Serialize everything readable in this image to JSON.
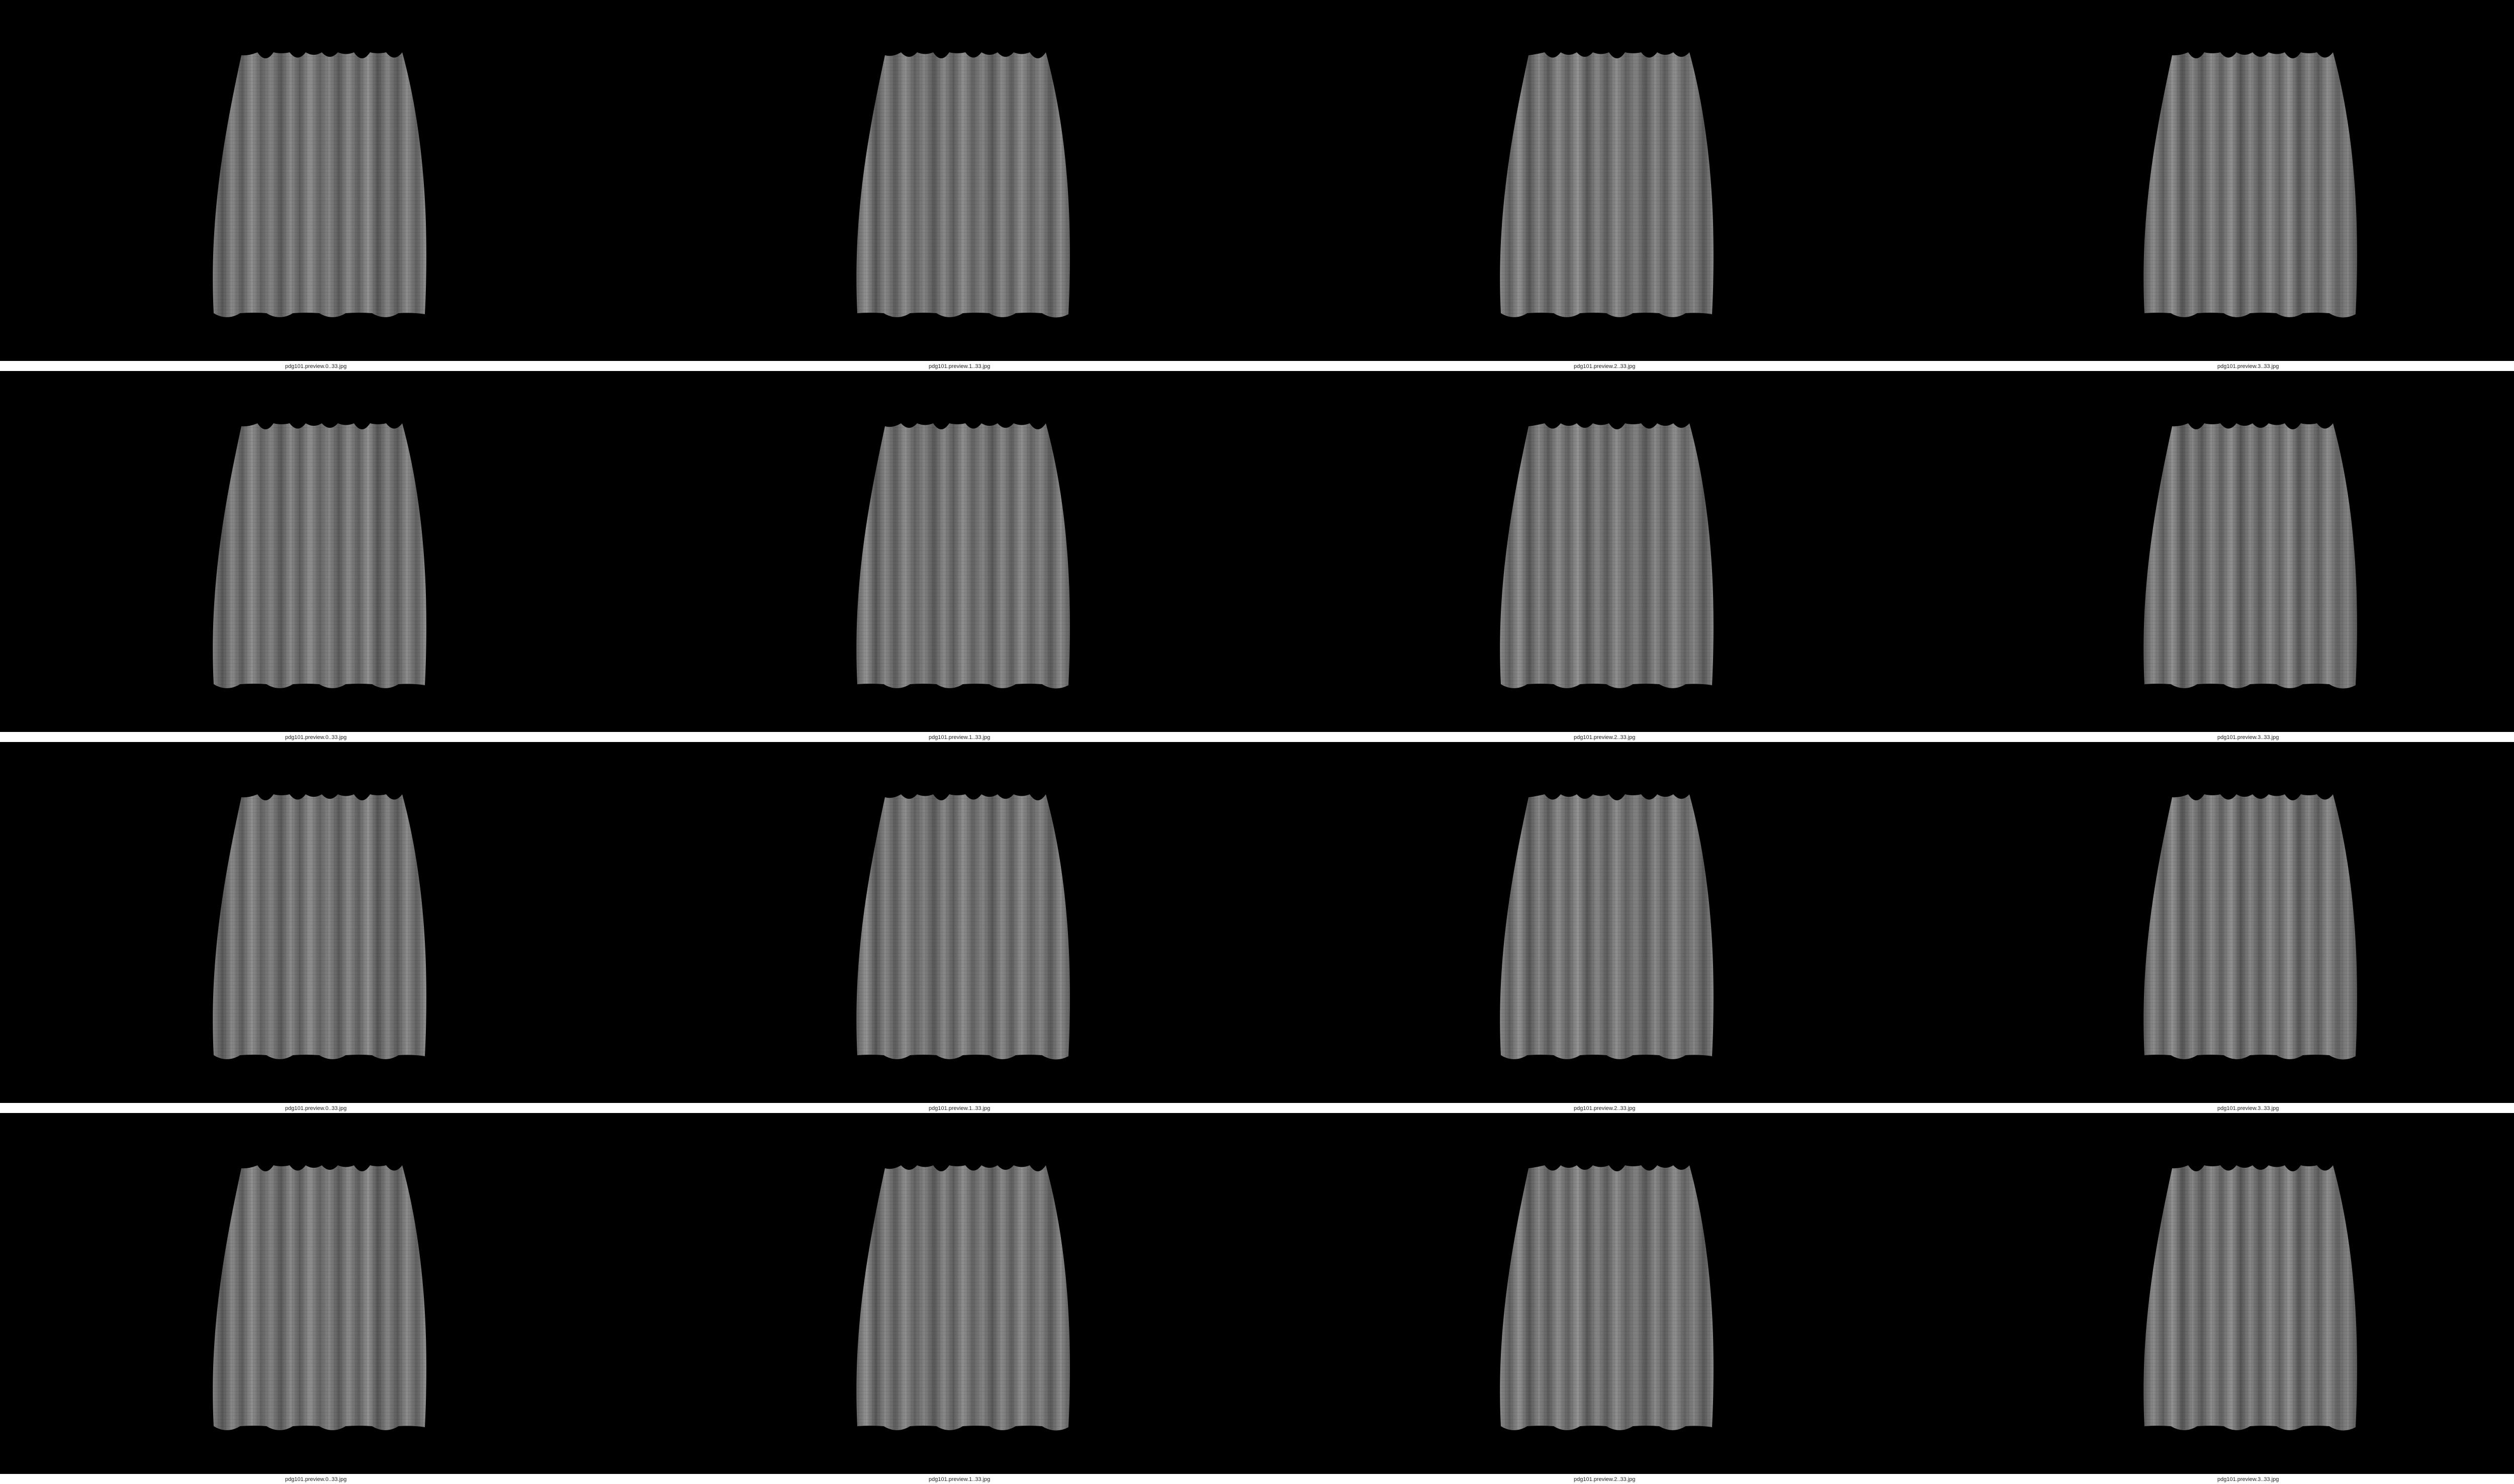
{
  "contact_sheet": {
    "background_color": "#000000",
    "cloth_color": "#7d7d7d",
    "rows": [
      {
        "tiles": [
          {
            "caption": "pdg101.preview.0..33.jpg"
          },
          {
            "caption": "pdg101.preview.1..33.jpg"
          },
          {
            "caption": "pdg101.preview.2..33.jpg"
          },
          {
            "caption": "pdg101.preview.3..33.jpg"
          }
        ]
      },
      {
        "tiles": [
          {
            "caption": "pdg101.preview.0..33.jpg"
          },
          {
            "caption": "pdg101.preview.1..33.jpg"
          },
          {
            "caption": "pdg101.preview.2..33.jpg"
          },
          {
            "caption": "pdg101.preview.3..33.jpg"
          }
        ]
      },
      {
        "tiles": [
          {
            "caption": "pdg101.preview.0..33.jpg"
          },
          {
            "caption": "pdg101.preview.1..33.jpg"
          },
          {
            "caption": "pdg101.preview.2..33.jpg"
          },
          {
            "caption": "pdg101.preview.3..33.jpg"
          }
        ]
      },
      {
        "tiles": [
          {
            "caption": "pdg101.preview.0..33.jpg"
          },
          {
            "caption": "pdg101.preview.1..33.jpg"
          },
          {
            "caption": "pdg101.preview.2..33.jpg"
          },
          {
            "caption": "pdg101.preview.3..33.jpg"
          }
        ]
      }
    ]
  }
}
